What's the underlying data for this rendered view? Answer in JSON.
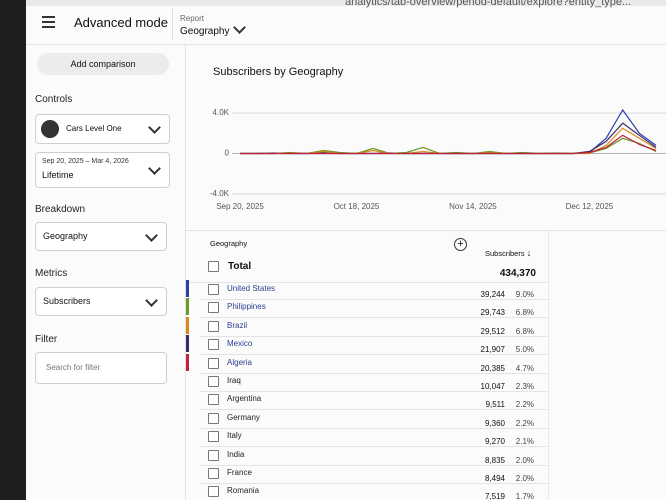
{
  "header": {
    "url": "analytics/tab-overview/period-default/explore?entity_type...",
    "title": "Advanced mode",
    "report_label": "Report",
    "report_value": "Geography"
  },
  "sidebar": {
    "add_comparison": "Add comparison",
    "controls": "Controls",
    "channel": "Cars Level One",
    "date_range": "Sep 20, 2025 – Mar 4, 2026",
    "period": "Lifetime",
    "breakdown": "Breakdown",
    "breakdown_value": "Geography",
    "metrics": "Metrics",
    "metrics_value": "Subscribers",
    "filter": "Filter",
    "filter_placeholder": "Search for filter"
  },
  "chart": {
    "type": "line",
    "title": "Subscribers by Geography",
    "x": [
      "Sep 20, 2025",
      null,
      null,
      null,
      null,
      null,
      null,
      "Oct 18, 2025",
      null,
      null,
      null,
      null,
      null,
      null,
      "Nov 14, 2025",
      null,
      null,
      null,
      null,
      null,
      null,
      "Dec 12, 2025",
      null,
      null,
      null,
      null
    ],
    "ylim": [
      -4500,
      4500
    ],
    "yticks": [
      {
        "value": 4000,
        "label": "4.0K"
      },
      0,
      {
        "value": -4000,
        "label": "-4.0K"
      }
    ],
    "series": [
      {
        "color": "#2b3fae",
        "values": [
          0,
          0,
          50,
          0,
          0,
          100,
          0,
          0,
          0,
          50,
          0,
          0,
          0,
          0,
          0,
          0,
          0,
          0,
          0,
          0,
          0,
          100,
          1500,
          4300,
          2000,
          800
        ]
      },
      {
        "color": "#6a9a2a",
        "values": [
          0,
          0,
          0,
          100,
          0,
          300,
          100,
          0,
          500,
          0,
          100,
          600,
          0,
          100,
          0,
          200,
          0,
          100,
          0,
          50,
          0,
          50,
          500,
          1500,
          1000,
          200
        ]
      },
      {
        "color": "#d98a1c",
        "values": [
          0,
          0,
          0,
          50,
          0,
          200,
          0,
          0,
          300,
          0,
          0,
          200,
          0,
          0,
          0,
          100,
          0,
          0,
          0,
          0,
          0,
          0,
          800,
          2500,
          1500,
          500
        ]
      },
      {
        "color": "#3a2a6e",
        "values": [
          0,
          0,
          0,
          0,
          0,
          0,
          0,
          0,
          0,
          0,
          0,
          0,
          0,
          0,
          0,
          0,
          0,
          0,
          0,
          0,
          0,
          200,
          1200,
          3000,
          1800,
          600
        ]
      },
      {
        "color": "#c0243a",
        "values": [
          0,
          0,
          0,
          0,
          0,
          0,
          0,
          0,
          0,
          0,
          0,
          0,
          0,
          0,
          0,
          0,
          0,
          0,
          0,
          0,
          0,
          100,
          600,
          1800,
          900,
          300
        ]
      }
    ]
  },
  "table": {
    "columns": [
      "Geography",
      "Subscribers"
    ],
    "total": {
      "label": "Total",
      "value": "434,370"
    },
    "rows": [
      {
        "name": "United States",
        "value": "39,244",
        "pct": "9.0%",
        "color": "#2b3fae"
      },
      {
        "name": "Philippines",
        "value": "29,743",
        "pct": "6.8%",
        "color": "#6a9a2a"
      },
      {
        "name": "Brazil",
        "value": "29,512",
        "pct": "6.8%",
        "color": "#d98a1c"
      },
      {
        "name": "Mexico",
        "value": "21,907",
        "pct": "5.0%",
        "color": "#3a2a6e"
      },
      {
        "name": "Algeria",
        "value": "20,385",
        "pct": "4.7%",
        "color": "#c0243a"
      },
      {
        "name": "Iraq",
        "value": "10,047",
        "pct": "2.3%"
      },
      {
        "name": "Argentina",
        "value": "9,511",
        "pct": "2.2%"
      },
      {
        "name": "Germany",
        "value": "9,360",
        "pct": "2.2%"
      },
      {
        "name": "Italy",
        "value": "9,270",
        "pct": "2.1%"
      },
      {
        "name": "India",
        "value": "8,835",
        "pct": "2.0%"
      },
      {
        "name": "France",
        "value": "8,494",
        "pct": "2.0%"
      },
      {
        "name": "Romania",
        "value": "7,519",
        "pct": "1.7%"
      }
    ]
  }
}
